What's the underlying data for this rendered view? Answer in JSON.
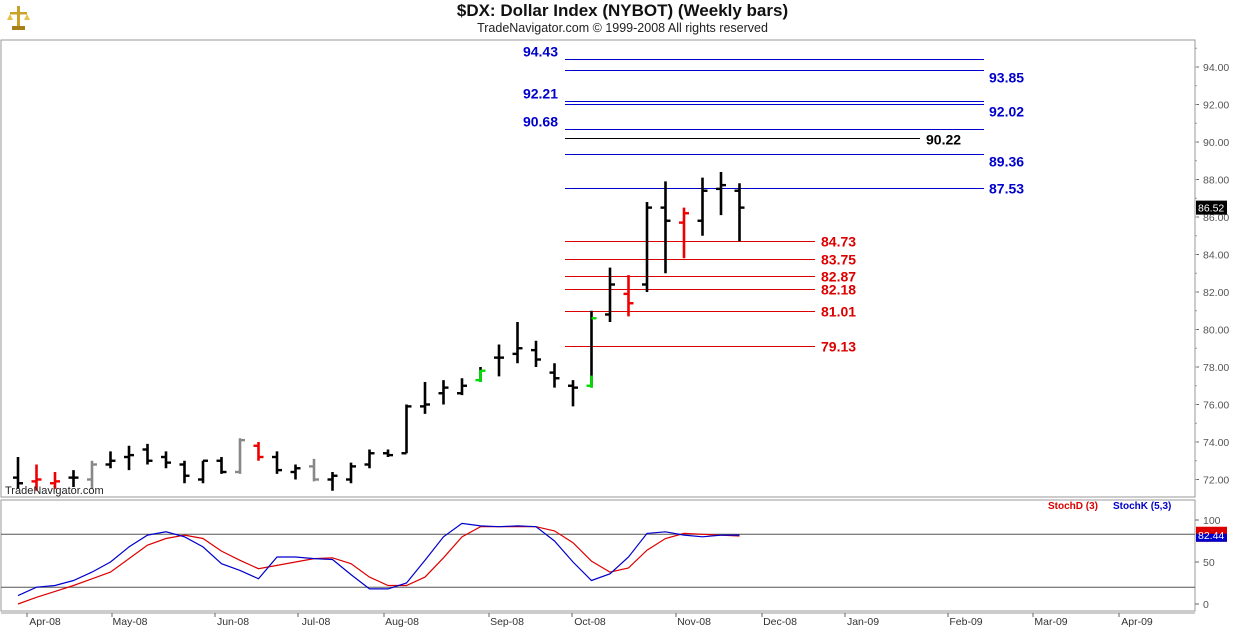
{
  "header": {
    "title": "$DX:  Dollar Index (NYBOT)  (Weekly bars)",
    "subtitle": "TradeNavigator.com © 1999-2008 All rights reserved"
  },
  "watermark": "TradeNavigator.com",
  "colors": {
    "resistance": "#0000cc",
    "support": "#dd0000",
    "bar_up": "#000000",
    "bar_down": "#ee0000",
    "bar_neutral": "#888888",
    "bar_special": "#00dd00",
    "stochD": "#dd0000",
    "stochK": "#0000cc"
  },
  "chart_data": {
    "type": "ohlc",
    "y_ticks": [
      "94.00",
      "92.00",
      "90.00",
      "88.00",
      "86.00",
      "84.00",
      "82.00",
      "80.00",
      "78.00",
      "76.00",
      "74.00",
      "72.00"
    ],
    "ylim": [
      71.0,
      96.0
    ],
    "x_labels": [
      "Apr-08",
      "May-08",
      "Jun-08",
      "Jul-08",
      "Aug-08",
      "Sep-08",
      "Oct-08",
      "Nov-08",
      "Dec-08",
      "Jan-09",
      "Feb-09",
      "Mar-09",
      "Apr-09"
    ],
    "last_price": "86.52",
    "bars": [
      {
        "o": 72.1,
        "h": 73.2,
        "l": 71.5,
        "c": 71.8,
        "t": "up"
      },
      {
        "o": 71.9,
        "h": 72.8,
        "l": 71.4,
        "c": 72.0,
        "t": "down"
      },
      {
        "o": 71.8,
        "h": 72.4,
        "l": 71.5,
        "c": 71.9,
        "t": "down"
      },
      {
        "o": 72.1,
        "h": 72.5,
        "l": 71.6,
        "c": 72.1,
        "t": "up"
      },
      {
        "o": 72.0,
        "h": 73.0,
        "l": 71.5,
        "c": 72.8,
        "t": "neutral"
      },
      {
        "o": 72.8,
        "h": 73.5,
        "l": 72.6,
        "c": 73.0,
        "t": "up"
      },
      {
        "o": 73.2,
        "h": 73.8,
        "l": 72.5,
        "c": 73.3,
        "t": "up"
      },
      {
        "o": 73.6,
        "h": 73.9,
        "l": 72.8,
        "c": 73.0,
        "t": "up"
      },
      {
        "o": 73.2,
        "h": 73.5,
        "l": 72.6,
        "c": 72.9,
        "t": "up"
      },
      {
        "o": 72.8,
        "h": 73.0,
        "l": 71.8,
        "c": 72.2,
        "t": "up"
      },
      {
        "o": 72.0,
        "h": 73.0,
        "l": 71.8,
        "c": 73.0,
        "t": "up"
      },
      {
        "o": 73.0,
        "h": 73.2,
        "l": 72.3,
        "c": 72.4,
        "t": "up"
      },
      {
        "o": 72.4,
        "h": 74.2,
        "l": 72.3,
        "c": 74.1,
        "t": "neutral"
      },
      {
        "o": 73.8,
        "h": 74.0,
        "l": 73.0,
        "c": 73.2,
        "t": "down"
      },
      {
        "o": 73.2,
        "h": 73.5,
        "l": 72.3,
        "c": 72.5,
        "t": "up"
      },
      {
        "o": 72.4,
        "h": 72.8,
        "l": 72.0,
        "c": 72.6,
        "t": "up"
      },
      {
        "o": 72.7,
        "h": 73.1,
        "l": 71.9,
        "c": 72.0,
        "t": "neutral"
      },
      {
        "o": 72.0,
        "h": 72.4,
        "l": 71.4,
        "c": 72.2,
        "t": "up"
      },
      {
        "o": 72.0,
        "h": 72.9,
        "l": 71.8,
        "c": 72.7,
        "t": "up"
      },
      {
        "o": 72.8,
        "h": 73.6,
        "l": 72.6,
        "c": 73.4,
        "t": "up"
      },
      {
        "o": 73.4,
        "h": 73.6,
        "l": 73.2,
        "c": 73.3,
        "t": "up"
      },
      {
        "o": 73.4,
        "h": 76.0,
        "l": 73.4,
        "c": 75.9,
        "t": "up"
      },
      {
        "o": 75.9,
        "h": 77.2,
        "l": 75.5,
        "c": 76.0,
        "t": "up"
      },
      {
        "o": 76.6,
        "h": 77.3,
        "l": 76.0,
        "c": 76.9,
        "t": "up"
      },
      {
        "o": 76.6,
        "h": 77.4,
        "l": 76.5,
        "c": 77.0,
        "t": "up"
      },
      {
        "o": 77.3,
        "h": 78.0,
        "l": 77.2,
        "c": 77.8,
        "t": "special"
      },
      {
        "o": 78.5,
        "h": 79.2,
        "l": 77.5,
        "c": 78.5,
        "t": "up"
      },
      {
        "o": 78.7,
        "h": 80.4,
        "l": 78.2,
        "c": 79.0,
        "t": "up"
      },
      {
        "o": 78.9,
        "h": 79.4,
        "l": 78.0,
        "c": 78.4,
        "t": "up"
      },
      {
        "o": 77.7,
        "h": 78.2,
        "l": 76.9,
        "c": 77.4,
        "t": "up"
      },
      {
        "o": 77.0,
        "h": 77.3,
        "l": 75.9,
        "c": 76.9,
        "t": "up"
      },
      {
        "o": 77.0,
        "h": 81.0,
        "l": 76.9,
        "c": 80.6,
        "t": "special"
      },
      {
        "o": 80.8,
        "h": 83.3,
        "l": 80.4,
        "c": 82.4,
        "t": "up"
      },
      {
        "o": 81.9,
        "h": 82.9,
        "l": 80.7,
        "c": 81.4,
        "t": "down"
      },
      {
        "o": 82.4,
        "h": 86.8,
        "l": 82.0,
        "c": 86.5,
        "t": "up"
      },
      {
        "o": 86.5,
        "h": 87.9,
        "l": 83.0,
        "c": 85.8,
        "t": "up"
      },
      {
        "o": 85.7,
        "h": 86.5,
        "l": 83.8,
        "c": 86.2,
        "t": "down"
      },
      {
        "o": 85.8,
        "h": 88.1,
        "l": 85.0,
        "c": 87.4,
        "t": "up"
      },
      {
        "o": 87.5,
        "h": 88.4,
        "l": 86.1,
        "c": 87.7,
        "t": "up"
      },
      {
        "o": 87.4,
        "h": 87.8,
        "l": 84.7,
        "c": 86.5,
        "t": "up"
      }
    ],
    "levels": [
      {
        "label": "94.43",
        "value": 94.43,
        "side": "left",
        "color": "blue"
      },
      {
        "label": "93.85",
        "value": 93.85,
        "side": "right",
        "color": "blue"
      },
      {
        "label": "92.21",
        "value": 92.21,
        "side": "left",
        "color": "blue"
      },
      {
        "label": "92.02",
        "value": 92.02,
        "side": "right",
        "color": "blue"
      },
      {
        "label": "90.68",
        "value": 90.68,
        "side": "left",
        "color": "blue"
      },
      {
        "label": "90.22",
        "value": 90.22,
        "side": "right",
        "color": "black"
      },
      {
        "label": "89.36",
        "value": 89.36,
        "side": "right",
        "color": "blue"
      },
      {
        "label": "87.53",
        "value": 87.53,
        "side": "right",
        "color": "blue"
      },
      {
        "label": "84.73",
        "value": 84.73,
        "side": "right",
        "color": "red"
      },
      {
        "label": "83.75",
        "value": 83.75,
        "side": "right",
        "color": "red"
      },
      {
        "label": "82.87",
        "value": 82.87,
        "side": "right",
        "color": "red"
      },
      {
        "label": "82.18",
        "value": 82.18,
        "side": "right",
        "color": "red"
      },
      {
        "label": "81.01",
        "value": 81.01,
        "side": "right",
        "color": "red"
      },
      {
        "label": "79.13",
        "value": 79.13,
        "side": "right",
        "color": "red"
      }
    ],
    "stoch": {
      "legend": [
        "StochD (3)",
        "StochK (5,3)"
      ],
      "y_ticks": [
        "100",
        "50",
        "0"
      ],
      "last_value": "82.44",
      "K": [
        10,
        20,
        22,
        28,
        38,
        50,
        68,
        82,
        86,
        80,
        68,
        48,
        40,
        30,
        56,
        56,
        54,
        53,
        35,
        18,
        18,
        25,
        52,
        80,
        96,
        93,
        92,
        93,
        92,
        75,
        50,
        28,
        36,
        56,
        84,
        86,
        82,
        80,
        82,
        82
      ],
      "D": [
        0,
        8,
        15,
        22,
        30,
        38,
        54,
        70,
        78,
        82,
        78,
        63,
        52,
        42,
        46,
        50,
        54,
        55,
        48,
        32,
        22,
        22,
        32,
        55,
        80,
        92,
        92,
        92,
        92,
        87,
        73,
        51,
        38,
        43,
        64,
        78,
        84,
        83,
        82,
        81
      ]
    }
  }
}
